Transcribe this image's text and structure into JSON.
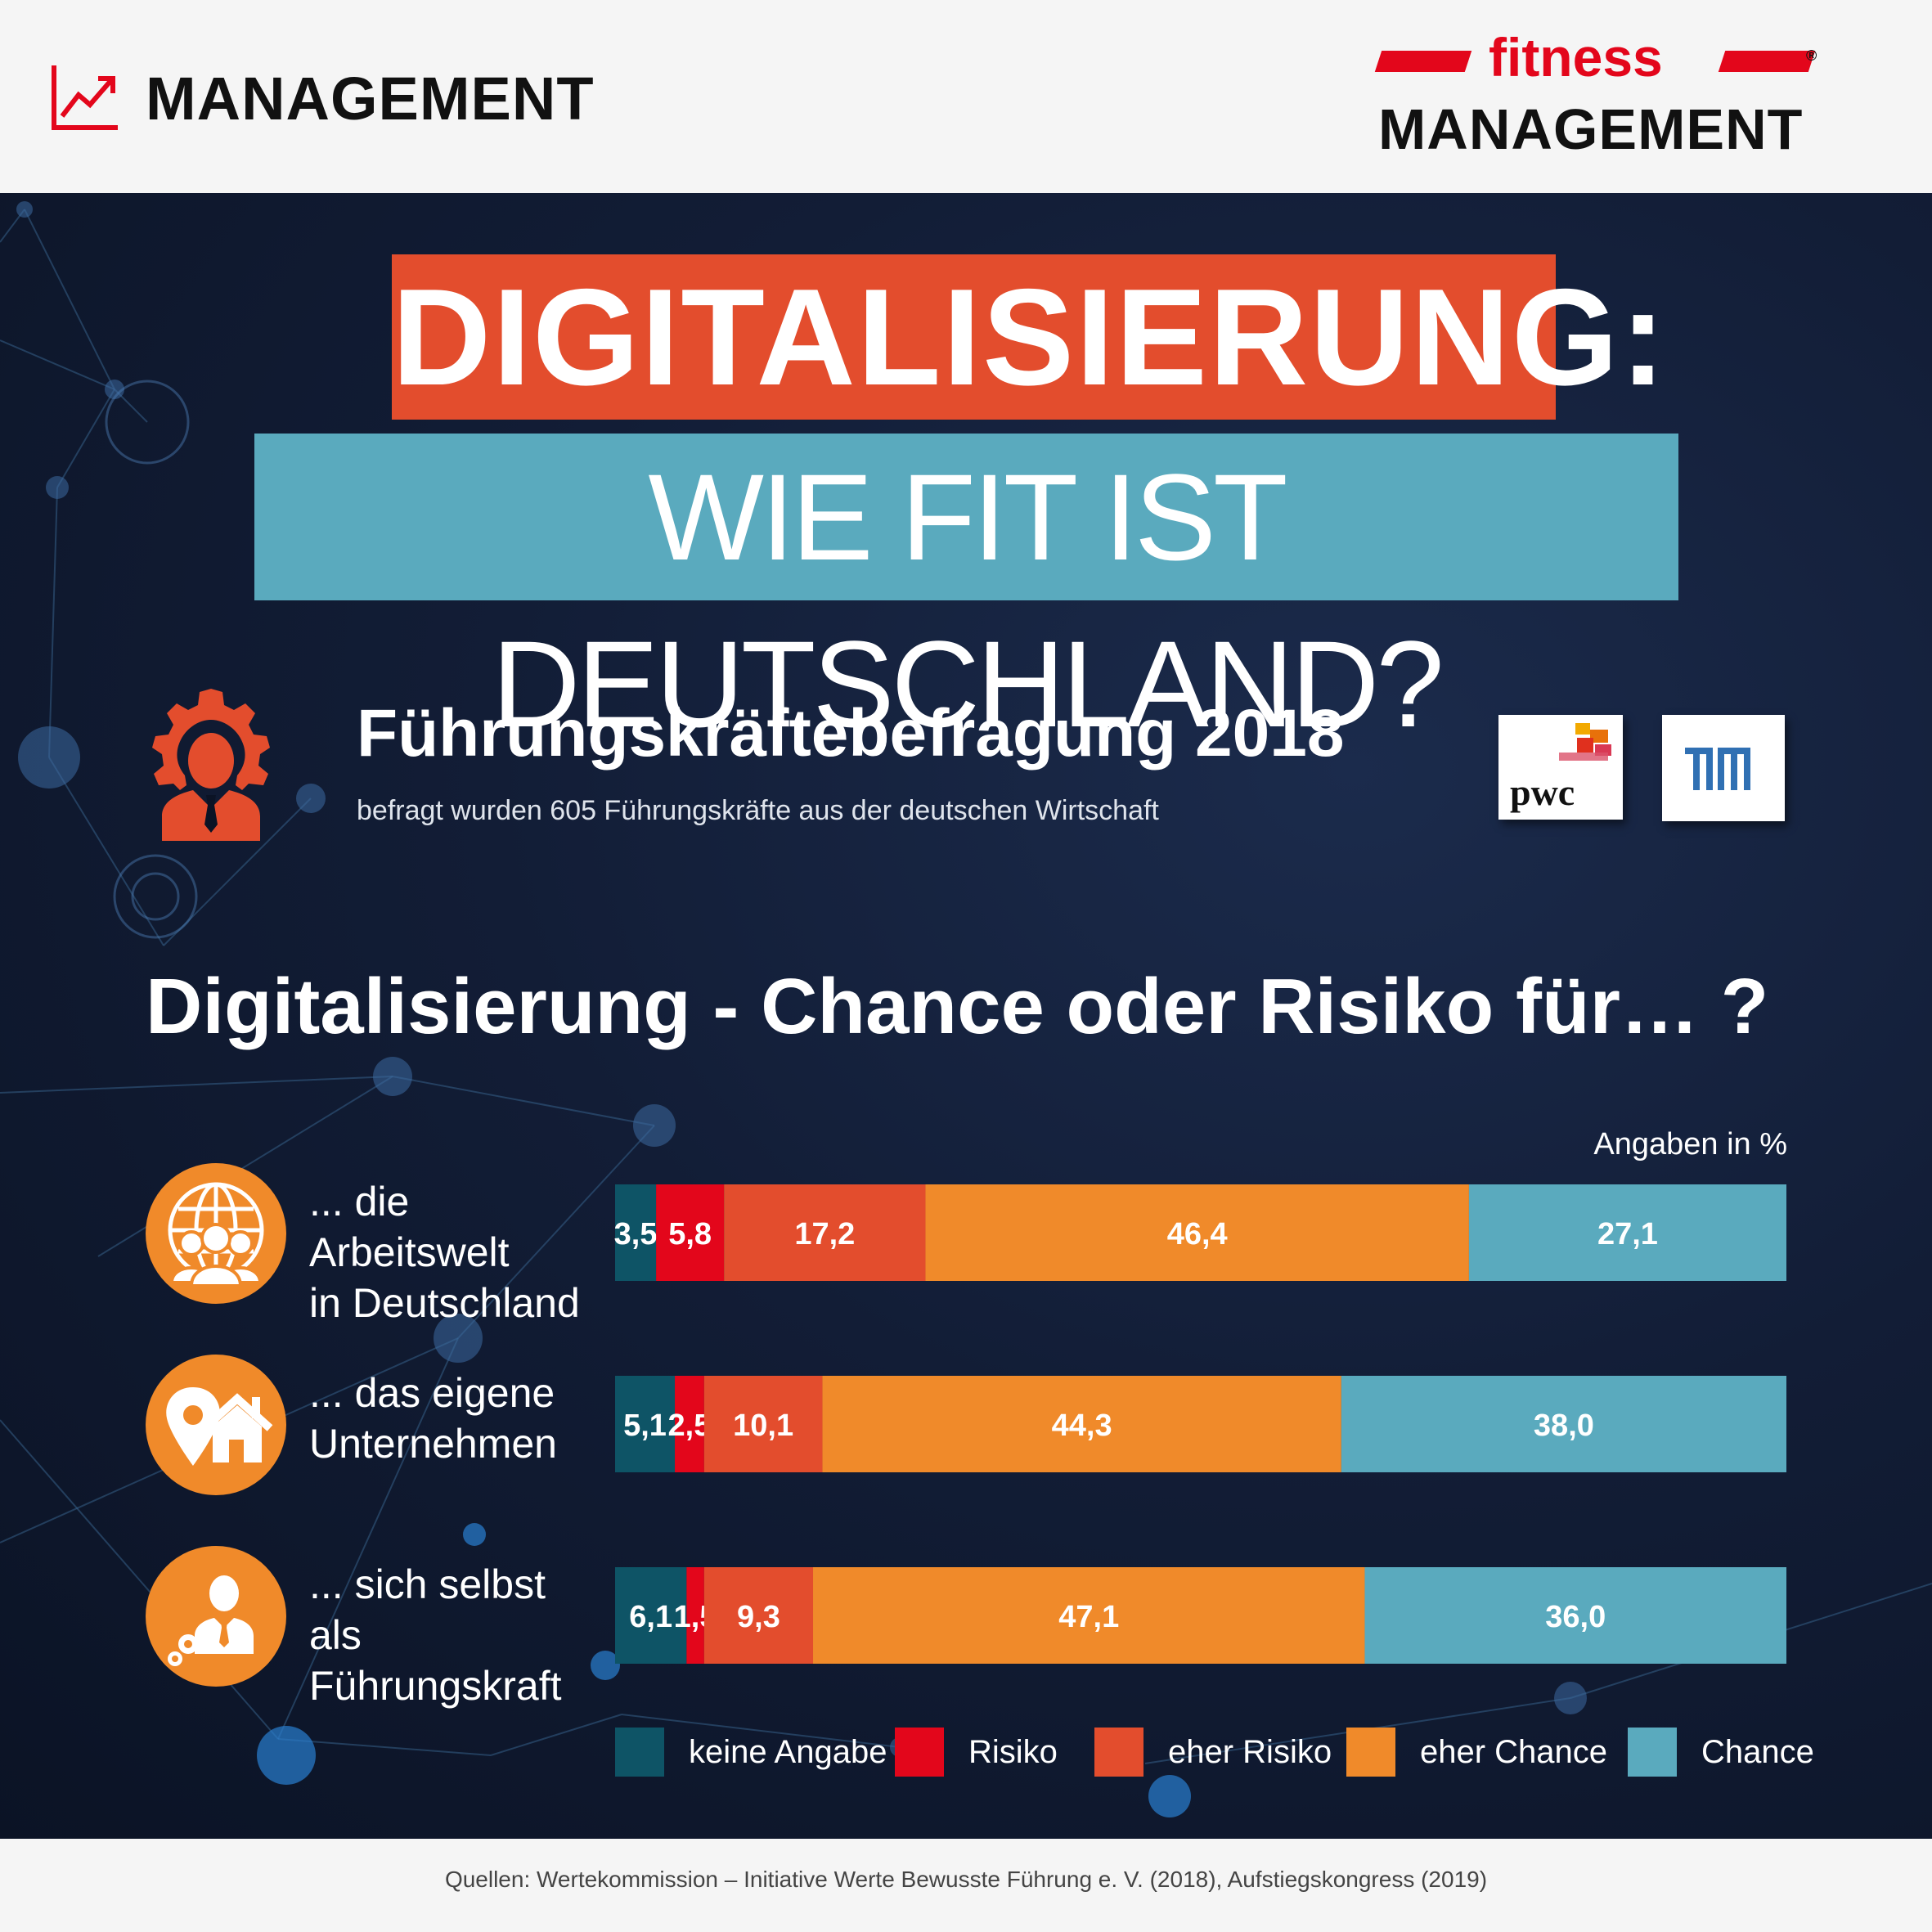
{
  "header": {
    "category": "MANAGEMENT",
    "brand_top": "fitness",
    "brand_bottom": "MANAGEMENT",
    "brand_mark": "®"
  },
  "title": {
    "line1": "DIGITALISIERUNG:",
    "line2": "WIE FIT IST DEUTSCHLAND?"
  },
  "survey": {
    "title": "Führungskräftebefragung 2018",
    "subtitle": "befragt wurden 605 Führungskräfte aus der deutschen Wirtschaft",
    "logos": [
      "pwc",
      "TUM"
    ]
  },
  "question": "Digitalisierung - Chance oder Risiko für… ?",
  "unit": "Angaben in %",
  "colors": {
    "keine Angabe": "#0e5466",
    "Risiko": "#e3061b",
    "eher Risiko": "#e34d2d",
    "eher Chance": "#f08a2a",
    "Chance": "#5aaabe",
    "icon": "#f08a2a"
  },
  "rows": [
    {
      "label_line1": "... die Arbeitswelt",
      "label_line2": "in Deutschland",
      "icon": "globe-people-icon"
    },
    {
      "label_line1": "... das eigene",
      "label_line2": "Unternehmen",
      "icon": "location-house-icon"
    },
    {
      "label_line1": "... sich selbst als",
      "label_line2": "Führungskraft",
      "icon": "manager-gears-icon"
    }
  ],
  "chart_data": {
    "type": "bar",
    "orientation": "horizontal",
    "stacked": true,
    "categories": [
      "... die Arbeitswelt in Deutschland",
      "... das eigene Unternehmen",
      "... sich selbst als Führungskraft"
    ],
    "series": [
      {
        "name": "keine Angabe",
        "values": [
          3.5,
          5.1,
          6.1
        ],
        "labels": [
          "3,5",
          "5,1",
          "6,1"
        ],
        "color": "#0e5466"
      },
      {
        "name": "Risiko",
        "values": [
          5.8,
          2.5,
          1.5
        ],
        "labels": [
          "5,8",
          "2,5",
          "1,5"
        ],
        "color": "#e3061b"
      },
      {
        "name": "eher Risiko",
        "values": [
          17.2,
          10.1,
          9.3
        ],
        "labels": [
          "17,2",
          "10,1",
          "9,3"
        ],
        "color": "#e34d2d"
      },
      {
        "name": "eher Chance",
        "values": [
          46.4,
          44.3,
          47.1
        ],
        "labels": [
          "46,4",
          "44,3",
          "47,1"
        ],
        "color": "#f08a2a"
      },
      {
        "name": "Chance",
        "values": [
          27.1,
          38.0,
          36.0
        ],
        "labels": [
          "27,1",
          "38,0",
          "36,0"
        ],
        "color": "#5aaabe"
      }
    ],
    "title": "Digitalisierung - Chance oder Risiko für… ?",
    "unit": "Angaben in %",
    "xlim": [
      0,
      100
    ],
    "grid": false,
    "legend": "bottom"
  },
  "legend": [
    "keine Angabe",
    "Risiko",
    "eher Risiko",
    "eher Chance",
    "Chance"
  ],
  "footer": "Quellen: Wertekommission – Initiative Werte Bewusste Führung e. V. (2018), Aufstiegskongress (2019)"
}
